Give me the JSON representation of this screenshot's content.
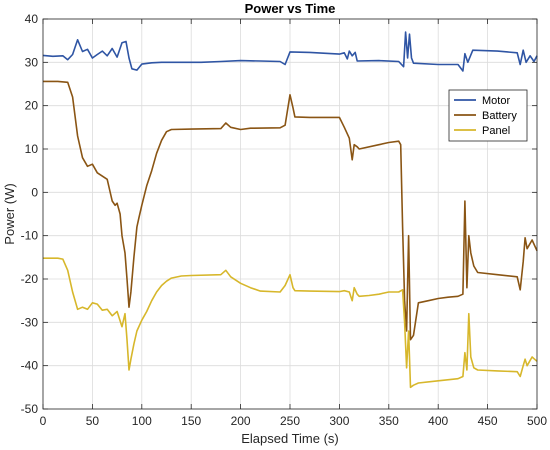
{
  "chart_data": {
    "type": "line",
    "title": "Power vs Time",
    "xlabel": "Elapsed Time (s)",
    "ylabel": "Power (W)",
    "xlim": [
      0,
      500
    ],
    "ylim": [
      -50,
      40
    ],
    "xticks": [
      0,
      50,
      100,
      150,
      200,
      250,
      300,
      350,
      400,
      450,
      500
    ],
    "yticks": [
      -50,
      -40,
      -30,
      -20,
      -10,
      0,
      10,
      20,
      30,
      40
    ],
    "grid": true,
    "legend_position": "top-right",
    "series": [
      {
        "name": "Motor",
        "color": "#2f55a4",
        "points": [
          [
            0,
            31.6
          ],
          [
            10,
            31.4
          ],
          [
            20,
            31.5
          ],
          [
            25,
            30.6
          ],
          [
            30,
            31.8
          ],
          [
            35,
            35.2
          ],
          [
            40,
            32.5
          ],
          [
            45,
            33
          ],
          [
            50,
            31
          ],
          [
            55,
            31.8
          ],
          [
            60,
            32.6
          ],
          [
            65,
            31.5
          ],
          [
            70,
            33.2
          ],
          [
            75,
            31.2
          ],
          [
            80,
            34.5
          ],
          [
            84,
            34.8
          ],
          [
            87,
            31
          ],
          [
            90,
            28.5
          ],
          [
            95,
            28.2
          ],
          [
            100,
            29.6
          ],
          [
            110,
            29.9
          ],
          [
            120,
            30
          ],
          [
            140,
            30
          ],
          [
            160,
            30
          ],
          [
            180,
            30.2
          ],
          [
            200,
            30.4
          ],
          [
            220,
            30.3
          ],
          [
            240,
            30.2
          ],
          [
            245,
            29.5
          ],
          [
            250,
            32.4
          ],
          [
            270,
            32.3
          ],
          [
            300,
            31.9
          ],
          [
            305,
            32.2
          ],
          [
            308,
            30.8
          ],
          [
            310,
            32.6
          ],
          [
            313,
            31.5
          ],
          [
            316,
            32.3
          ],
          [
            318,
            30.3
          ],
          [
            340,
            30.4
          ],
          [
            360,
            30.2
          ],
          [
            365,
            29
          ],
          [
            367,
            37
          ],
          [
            369,
            31
          ],
          [
            371,
            36.5
          ],
          [
            373,
            31
          ],
          [
            375,
            29.8
          ],
          [
            400,
            29.5
          ],
          [
            420,
            29.5
          ],
          [
            425,
            28
          ],
          [
            427,
            32
          ],
          [
            430,
            30
          ],
          [
            435,
            32.8
          ],
          [
            460,
            32.6
          ],
          [
            480,
            32.2
          ],
          [
            483,
            29.5
          ],
          [
            486,
            32.8
          ],
          [
            489,
            30
          ],
          [
            493,
            31.5
          ],
          [
            497,
            30.2
          ],
          [
            500,
            31.5
          ]
        ]
      },
      {
        "name": "Battery",
        "color": "#8a5514",
        "points": [
          [
            0,
            25.6
          ],
          [
            15,
            25.6
          ],
          [
            25,
            25.4
          ],
          [
            30,
            22
          ],
          [
            35,
            13
          ],
          [
            40,
            8
          ],
          [
            45,
            6
          ],
          [
            50,
            6.5
          ],
          [
            55,
            4.5
          ],
          [
            65,
            3
          ],
          [
            70,
            -2
          ],
          [
            73,
            -3
          ],
          [
            75,
            -2.5
          ],
          [
            78,
            -5
          ],
          [
            80,
            -10
          ],
          [
            83,
            -14
          ],
          [
            85,
            -20
          ],
          [
            87,
            -26.5
          ],
          [
            89,
            -23
          ],
          [
            92,
            -15
          ],
          [
            95,
            -8
          ],
          [
            97,
            -6
          ],
          [
            100,
            -3
          ],
          [
            105,
            1.5
          ],
          [
            110,
            5
          ],
          [
            115,
            9
          ],
          [
            120,
            12
          ],
          [
            125,
            14
          ],
          [
            130,
            14.5
          ],
          [
            150,
            14.6
          ],
          [
            180,
            14.7
          ],
          [
            185,
            16
          ],
          [
            190,
            15
          ],
          [
            200,
            14.5
          ],
          [
            210,
            14.8
          ],
          [
            240,
            14.9
          ],
          [
            245,
            15.5
          ],
          [
            250,
            22.5
          ],
          [
            253,
            19.5
          ],
          [
            255,
            17.4
          ],
          [
            270,
            17.3
          ],
          [
            300,
            17.3
          ],
          [
            305,
            15
          ],
          [
            310,
            12.5
          ],
          [
            313,
            7.5
          ],
          [
            315,
            11
          ],
          [
            318,
            10.5
          ],
          [
            320,
            10
          ],
          [
            340,
            11
          ],
          [
            350,
            11.5
          ],
          [
            360,
            11.8
          ],
          [
            362,
            11
          ],
          [
            364,
            -8
          ],
          [
            366,
            -25
          ],
          [
            368,
            -32
          ],
          [
            370,
            -10
          ],
          [
            372,
            -34
          ],
          [
            375,
            -33
          ],
          [
            380,
            -25.5
          ],
          [
            390,
            -25
          ],
          [
            400,
            -24.5
          ],
          [
            410,
            -24.2
          ],
          [
            420,
            -24
          ],
          [
            425,
            -23.5
          ],
          [
            427,
            -2
          ],
          [
            429,
            -22
          ],
          [
            431,
            -10
          ],
          [
            433,
            -14
          ],
          [
            436,
            -17
          ],
          [
            440,
            -18.5
          ],
          [
            460,
            -19
          ],
          [
            480,
            -19.5
          ],
          [
            483,
            -22.5
          ],
          [
            486,
            -16
          ],
          [
            488,
            -10.5
          ],
          [
            490,
            -13
          ],
          [
            495,
            -11
          ],
          [
            500,
            -13.5
          ]
        ]
      },
      {
        "name": "Panel",
        "color": "#d7b72b",
        "points": [
          [
            0,
            -15.2
          ],
          [
            15,
            -15.2
          ],
          [
            20,
            -15.4
          ],
          [
            25,
            -18
          ],
          [
            30,
            -23
          ],
          [
            35,
            -27
          ],
          [
            40,
            -26.5
          ],
          [
            45,
            -27
          ],
          [
            50,
            -25.5
          ],
          [
            55,
            -25.8
          ],
          [
            60,
            -27.2
          ],
          [
            65,
            -27
          ],
          [
            70,
            -28.5
          ],
          [
            75,
            -27.5
          ],
          [
            80,
            -31
          ],
          [
            83,
            -28
          ],
          [
            85,
            -34
          ],
          [
            87,
            -41
          ],
          [
            89,
            -38.5
          ],
          [
            92,
            -35
          ],
          [
            95,
            -32
          ],
          [
            100,
            -29.5
          ],
          [
            105,
            -27.5
          ],
          [
            110,
            -25
          ],
          [
            115,
            -23
          ],
          [
            120,
            -21.5
          ],
          [
            125,
            -20.5
          ],
          [
            130,
            -19.8
          ],
          [
            140,
            -19.3
          ],
          [
            150,
            -19.2
          ],
          [
            180,
            -19
          ],
          [
            185,
            -18
          ],
          [
            190,
            -19.5
          ],
          [
            200,
            -21
          ],
          [
            210,
            -22
          ],
          [
            220,
            -22.8
          ],
          [
            240,
            -23
          ],
          [
            245,
            -21.5
          ],
          [
            250,
            -19
          ],
          [
            253,
            -22
          ],
          [
            255,
            -22.7
          ],
          [
            270,
            -22.8
          ],
          [
            300,
            -22.9
          ],
          [
            305,
            -22.7
          ],
          [
            310,
            -23
          ],
          [
            313,
            -25
          ],
          [
            315,
            -22
          ],
          [
            318,
            -23.5
          ],
          [
            320,
            -24
          ],
          [
            330,
            -23.8
          ],
          [
            340,
            -23.5
          ],
          [
            350,
            -23
          ],
          [
            360,
            -23
          ],
          [
            364,
            -22.5
          ],
          [
            366,
            -30
          ],
          [
            368,
            -40.5
          ],
          [
            370,
            -32
          ],
          [
            372,
            -45
          ],
          [
            375,
            -44.5
          ],
          [
            380,
            -44
          ],
          [
            400,
            -43.5
          ],
          [
            420,
            -43
          ],
          [
            425,
            -42.5
          ],
          [
            427,
            -37
          ],
          [
            429,
            -41
          ],
          [
            431,
            -28
          ],
          [
            433,
            -38
          ],
          [
            436,
            -40.5
          ],
          [
            440,
            -41
          ],
          [
            460,
            -41.2
          ],
          [
            480,
            -41.4
          ],
          [
            483,
            -42.5
          ],
          [
            486,
            -40
          ],
          [
            488,
            -38.5
          ],
          [
            490,
            -40
          ],
          [
            495,
            -38
          ],
          [
            500,
            -39
          ]
        ]
      }
    ]
  }
}
